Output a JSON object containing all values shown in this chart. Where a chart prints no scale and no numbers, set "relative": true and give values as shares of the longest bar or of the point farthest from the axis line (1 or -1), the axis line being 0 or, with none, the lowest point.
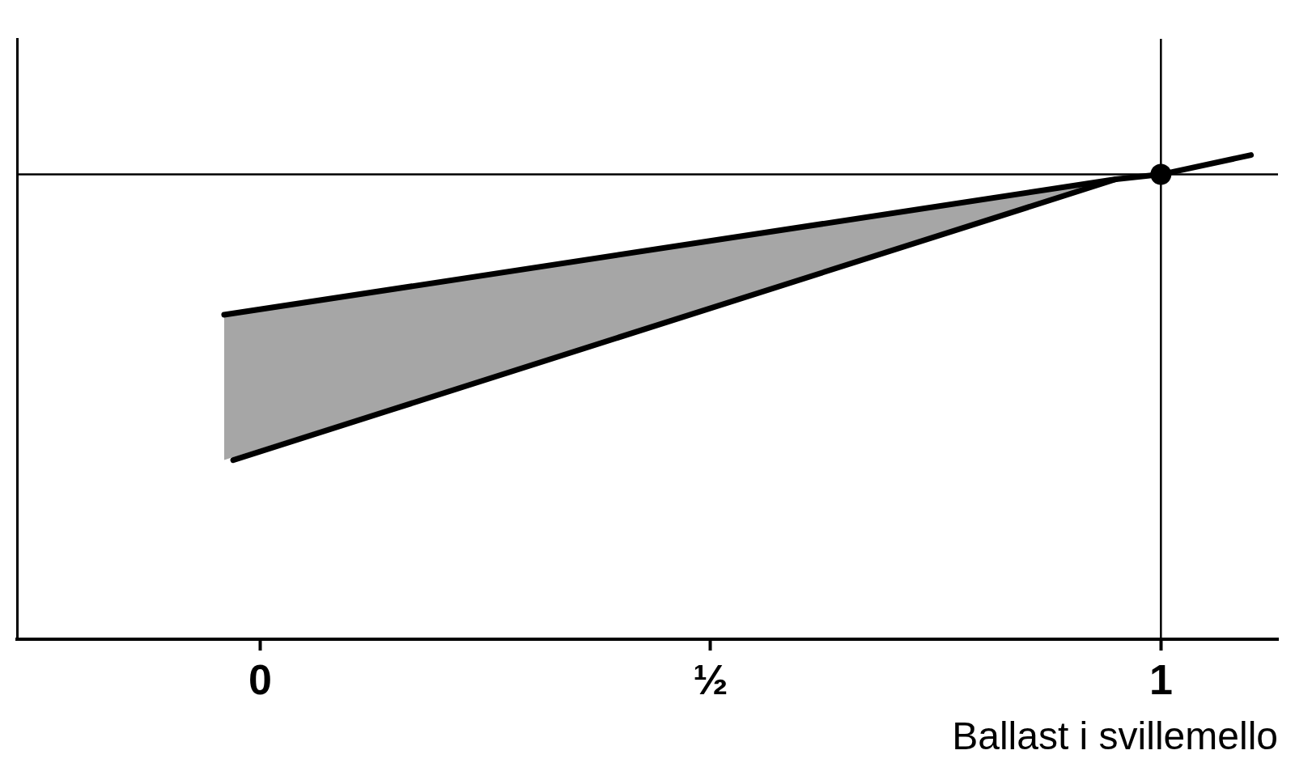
{
  "chart_data": {
    "type": "line",
    "xlabel": "Ballast i svillemello",
    "relative": true,
    "xlim": [
      -0.27,
      1.13
    ],
    "xticks": [
      0,
      {
        "value": 0.5,
        "label": "½"
      },
      1
    ],
    "tick_labels": "x",
    "series": [
      {
        "type": "line",
        "color": "#000000",
        "x": [
          -0.04,
          0.95
        ],
        "values": [
          0.67,
          0.95
        ],
        "lower": [
          0.37,
          0.95
        ],
        "upper": [
          0.67,
          0.95
        ]
      },
      {
        "type": "line",
        "color": "#000000",
        "x": [
          -0.03,
          0.95,
          1,
          1.1
        ],
        "values": [
          0.37,
          0.95,
          0.96,
          1
        ]
      },
      {
        "type": "scatter",
        "color": "#000000",
        "x": [
          1
        ],
        "values": [
          0.96
        ],
        "marker": "circle"
      }
    ],
    "ref_lines": [
      {
        "axis": "y",
        "value": 0.96,
        "color": "#000000"
      },
      {
        "axis": "x",
        "value": 1,
        "color": "#000000"
      }
    ]
  }
}
